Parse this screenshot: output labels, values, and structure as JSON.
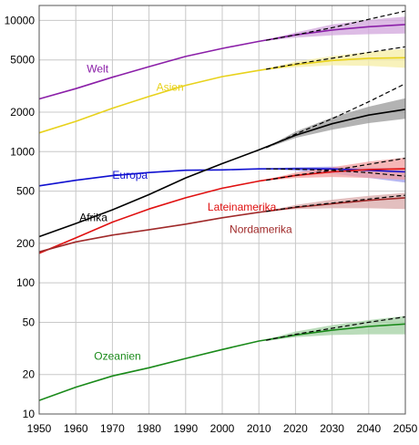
{
  "chart_data": {
    "type": "line",
    "title": "",
    "xlabel": "",
    "ylabel": "",
    "y_scale": "log",
    "xlim": [
      1950,
      2050
    ],
    "ylim": [
      10,
      13000
    ],
    "grid": true,
    "x_ticks": [
      "1950",
      "1960",
      "1970",
      "1980",
      "1990",
      "2000",
      "2010",
      "2020",
      "2030",
      "2040",
      "2050"
    ],
    "y_ticks": [
      {
        "value": 10,
        "label": "10"
      },
      {
        "value": 20,
        "label": "20"
      },
      {
        "value": 50,
        "label": "50"
      },
      {
        "value": 100,
        "label": "100"
      },
      {
        "value": 200,
        "label": "200"
      },
      {
        "value": 500,
        "label": "500"
      },
      {
        "value": 1000,
        "label": "1000"
      },
      {
        "value": 2000,
        "label": "2000"
      },
      {
        "value": 5000,
        "label": "5000"
      },
      {
        "value": 10000,
        "label": "10000"
      }
    ],
    "series": [
      {
        "name": "Welt",
        "color": "#8b1fa8",
        "label_at": [
          1963,
          4000
        ],
        "x": [
          1950,
          1960,
          1970,
          1980,
          1990,
          2000,
          2010,
          2020,
          2030,
          2040,
          2050
        ],
        "values": [
          2520,
          3020,
          3690,
          4440,
          5310,
          6120,
          6920,
          7750,
          8450,
          8950,
          9300
        ],
        "projection": {
          "x": [
            2012,
            2020,
            2030,
            2040,
            2050
          ],
          "values": [
            7050,
            7750,
            8800,
            10200,
            11800
          ]
        },
        "band": {
          "x": [
            2012,
            2020,
            2030,
            2040,
            2050
          ],
          "low": [
            7000,
            7400,
            7700,
            7850,
            7950
          ],
          "high": [
            7100,
            8100,
            9300,
            10100,
            10700
          ]
        }
      },
      {
        "name": "Asien",
        "color": "#e8d21c",
        "label_at": [
          1982,
          2900
        ],
        "x": [
          1950,
          1960,
          1970,
          1980,
          1990,
          2000,
          2010,
          2020,
          2030,
          2040,
          2050
        ],
        "values": [
          1390,
          1700,
          2140,
          2630,
          3200,
          3730,
          4160,
          4600,
          4950,
          5150,
          5200
        ],
        "projection": {
          "x": [
            2012,
            2020,
            2030,
            2040,
            2050
          ],
          "values": [
            4250,
            4650,
            5150,
            5700,
            6300
          ]
        },
        "band": {
          "x": [
            2012,
            2020,
            2030,
            2040,
            2050
          ],
          "low": [
            4200,
            4400,
            4550,
            4500,
            4350
          ],
          "high": [
            4300,
            4850,
            5350,
            5750,
            6100
          ]
        }
      },
      {
        "name": "Europa",
        "color": "#1010d0",
        "label_at": [
          1970,
          620
        ],
        "x": [
          1950,
          1960,
          1970,
          1980,
          1990,
          2000,
          2010,
          2020,
          2030,
          2040,
          2050
        ],
        "values": [
          548,
          605,
          656,
          693,
          721,
          726,
          738,
          741,
          738,
          720,
          700
        ],
        "projection": {
          "x": [
            2012,
            2020,
            2030,
            2040,
            2050
          ],
          "values": [
            738,
            735,
            720,
            690,
            650
          ]
        },
        "band": {
          "x": [
            2012,
            2020,
            2030,
            2040,
            2050
          ],
          "low": [
            735,
            715,
            680,
            630,
            580
          ],
          "high": [
            742,
            760,
            770,
            760,
            740
          ]
        }
      },
      {
        "name": "Afrika",
        "color": "#000000",
        "label_at": [
          1961,
          295
        ],
        "x": [
          1950,
          1960,
          1970,
          1980,
          1990,
          2000,
          2010,
          2020,
          2030,
          2040,
          2050
        ],
        "values": [
          225,
          283,
          360,
          470,
          630,
          810,
          1030,
          1330,
          1630,
          1900,
          2100
        ],
        "projection": {
          "x": [
            2012,
            2020,
            2030,
            2040,
            2050
          ],
          "values": [
            1070,
            1360,
            1780,
            2400,
            3300
          ]
        },
        "band": {
          "x": [
            2012,
            2020,
            2030,
            2040,
            2050
          ],
          "low": [
            1060,
            1270,
            1470,
            1650,
            1780
          ],
          "high": [
            1080,
            1420,
            1820,
            2200,
            2550
          ]
        }
      },
      {
        "name": "Lateinamerika",
        "color": "#e01010",
        "label_at": [
          1996,
          355
        ],
        "x": [
          1950,
          1960,
          1970,
          1980,
          1990,
          2000,
          2010,
          2020,
          2030,
          2040,
          2050
        ],
        "values": [
          168,
          220,
          290,
          365,
          445,
          526,
          596,
          658,
          700,
          730,
          740
        ],
        "projection": {
          "x": [
            2012,
            2020,
            2030,
            2040,
            2050
          ],
          "values": [
            605,
            660,
            720,
            800,
            890
          ]
        },
        "band": {
          "x": [
            2012,
            2020,
            2030,
            2040,
            2050
          ],
          "low": [
            600,
            630,
            640,
            630,
            610
          ],
          "high": [
            610,
            690,
            760,
            840,
            900
          ]
        }
      },
      {
        "name": "Nordamerika",
        "color": "#a02a2a",
        "label_at": [
          2002,
          240
        ],
        "x": [
          1950,
          1960,
          1970,
          1980,
          1990,
          2000,
          2010,
          2020,
          2030,
          2040,
          2050
        ],
        "values": [
          172,
          205,
          231,
          254,
          280,
          313,
          345,
          375,
          400,
          425,
          445
        ],
        "projection": {
          "x": [
            2012,
            2020,
            2030,
            2040,
            2050
          ],
          "values": [
            350,
            378,
            405,
            435,
            465
          ]
        },
        "band": {
          "x": [
            2012,
            2020,
            2030,
            2040,
            2050
          ],
          "low": [
            348,
            365,
            370,
            370,
            365
          ],
          "high": [
            352,
            392,
            430,
            460,
            485
          ]
        }
      },
      {
        "name": "Ozeanien",
        "color": "#1a8a1a",
        "label_at": [
          1965,
          26
        ],
        "x": [
          1950,
          1960,
          1970,
          1980,
          1990,
          2000,
          2010,
          2020,
          2030,
          2040,
          2050
        ],
        "values": [
          12.7,
          16,
          19.5,
          22.5,
          26.5,
          31,
          36,
          40,
          43.5,
          46.5,
          48.5
        ],
        "projection": {
          "x": [
            2012,
            2020,
            2030,
            2040,
            2050
          ],
          "values": [
            36.5,
            40.5,
            45,
            50,
            55
          ]
        },
        "band": {
          "x": [
            2012,
            2020,
            2030,
            2040,
            2050
          ],
          "low": [
            36,
            38.5,
            40,
            40.5,
            40.5
          ],
          "high": [
            37,
            42.5,
            47.5,
            52,
            56
          ]
        }
      }
    ]
  }
}
